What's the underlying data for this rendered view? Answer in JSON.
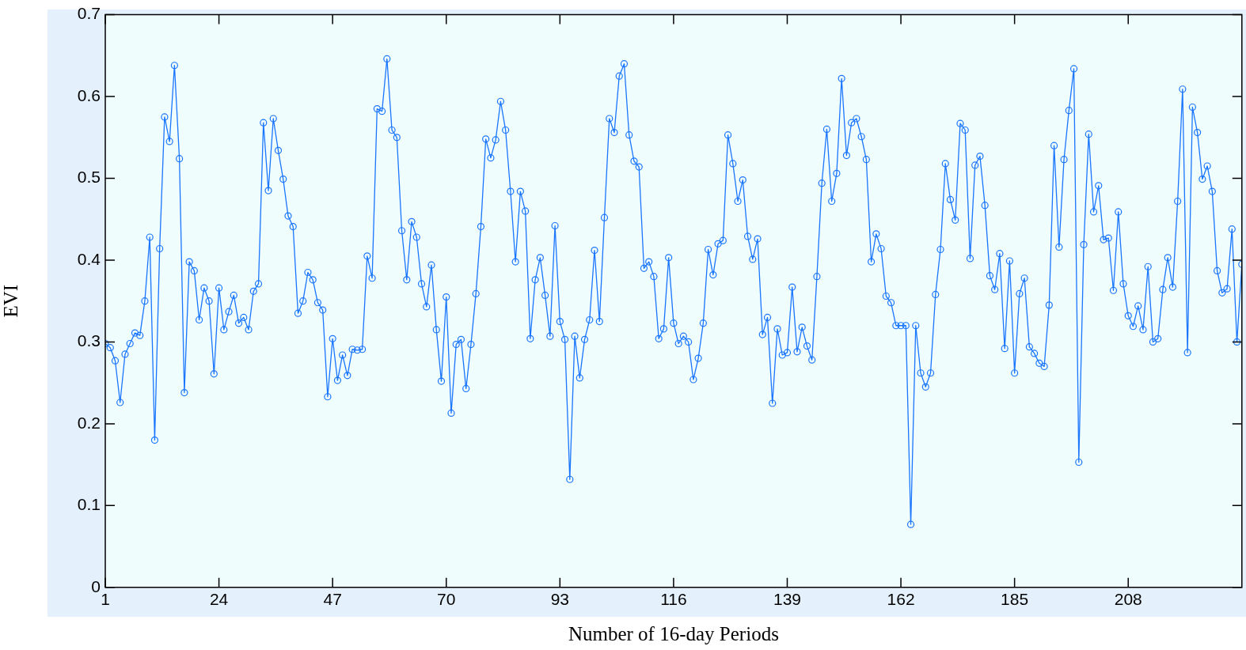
{
  "chart_data": {
    "type": "line",
    "xlabel": "Number of 16-day Periods",
    "ylabel": "EVI",
    "xlim": [
      1,
      231
    ],
    "ylim": [
      0,
      0.7
    ],
    "xticks": [
      1,
      24,
      47,
      70,
      93,
      116,
      139,
      162,
      185,
      208
    ],
    "yticks": [
      0,
      0.1,
      0.2,
      0.3,
      0.4,
      0.5,
      0.6,
      0.7
    ],
    "marker": "circle",
    "line_style": "solid",
    "x": [
      1,
      2,
      3,
      4,
      5,
      6,
      7,
      8,
      9,
      10,
      11,
      12,
      13,
      14,
      15,
      16,
      17,
      18,
      19,
      20,
      21,
      22,
      23,
      24,
      25,
      26,
      27,
      28,
      29,
      30,
      31,
      32,
      33,
      34,
      35,
      36,
      37,
      38,
      39,
      40,
      41,
      42,
      43,
      44,
      45,
      46,
      47,
      48,
      49,
      50,
      51,
      52,
      53,
      54,
      55,
      56,
      57,
      58,
      59,
      60,
      61,
      62,
      63,
      64,
      65,
      66,
      67,
      68,
      69,
      70,
      71,
      72,
      73,
      74,
      75,
      76,
      77,
      78,
      79,
      80,
      81,
      82,
      83,
      84,
      85,
      86,
      87,
      88,
      89,
      90,
      91,
      92,
      93,
      94,
      95,
      96,
      97,
      98,
      99,
      100,
      101,
      102,
      103,
      104,
      105,
      106,
      107,
      108,
      109,
      110,
      111,
      112,
      113,
      114,
      115,
      116,
      117,
      118,
      119,
      120,
      121,
      122,
      123,
      124,
      125,
      126,
      127,
      128,
      129,
      130,
      131,
      132,
      133,
      134,
      135,
      136,
      137,
      138,
      139,
      140,
      141,
      142,
      143,
      144,
      145,
      146,
      147,
      148,
      149,
      150,
      151,
      152,
      153,
      154,
      155,
      156,
      157,
      158,
      159,
      160,
      161,
      162,
      163,
      164,
      165,
      166,
      167,
      168,
      169,
      170,
      171,
      172,
      173,
      174,
      175,
      176,
      177,
      178,
      179,
      180,
      181,
      182,
      183,
      184,
      185,
      186,
      187,
      188,
      189,
      190,
      191,
      192,
      193,
      194,
      195,
      196,
      197,
      198,
      199,
      200,
      201,
      202,
      203,
      204,
      205,
      206,
      207,
      208,
      209,
      210,
      211,
      212,
      213,
      214,
      215,
      216,
      217,
      218,
      219,
      220,
      221,
      222,
      223,
      224,
      225,
      226,
      227,
      228,
      229,
      230,
      231
    ],
    "series": [
      {
        "color": "#1a75ff",
        "values": [
          0.298,
          0.293,
          0.277,
          0.226,
          0.285,
          0.298,
          0.311,
          0.308,
          0.35,
          0.428,
          0.18,
          0.414,
          0.575,
          0.545,
          0.638,
          0.524,
          0.238,
          0.398,
          0.387,
          0.327,
          0.366,
          0.35,
          0.261,
          0.366,
          0.315,
          0.337,
          0.357,
          0.323,
          0.33,
          0.315,
          0.362,
          0.371,
          0.568,
          0.485,
          0.573,
          0.534,
          0.499,
          0.454,
          0.441,
          0.335,
          0.35,
          0.385,
          0.376,
          0.348,
          0.339,
          0.233,
          0.304,
          0.253,
          0.284,
          0.259,
          0.291,
          0.29,
          0.291,
          0.405,
          0.378,
          0.585,
          0.582,
          0.646,
          0.559,
          0.55,
          0.436,
          0.376,
          0.447,
          0.428,
          0.371,
          0.343,
          0.394,
          0.315,
          0.252,
          0.355,
          0.213,
          0.297,
          0.303,
          0.243,
          0.297,
          0.359,
          0.441,
          0.548,
          0.525,
          0.547,
          0.594,
          0.559,
          0.484,
          0.398,
          0.484,
          0.46,
          0.304,
          0.376,
          0.403,
          0.357,
          0.307,
          0.442,
          0.325,
          0.303,
          0.132,
          0.307,
          0.256,
          0.303,
          0.327,
          0.412,
          0.325,
          0.452,
          0.573,
          0.556,
          0.625,
          0.64,
          0.553,
          0.521,
          0.514,
          0.39,
          0.398,
          0.38,
          0.304,
          0.316,
          0.403,
          0.323,
          0.298,
          0.307,
          0.3,
          0.254,
          0.28,
          0.323,
          0.413,
          0.382,
          0.42,
          0.424,
          0.553,
          0.518,
          0.472,
          0.498,
          0.429,
          0.401,
          0.426,
          0.309,
          0.33,
          0.225,
          0.316,
          0.284,
          0.287,
          0.367,
          0.288,
          0.318,
          0.295,
          0.278,
          0.38,
          0.494,
          0.56,
          0.472,
          0.506,
          0.622,
          0.528,
          0.568,
          0.573,
          0.551,
          0.523,
          0.398,
          0.432,
          0.414,
          0.356,
          0.348,
          0.32,
          0.32,
          0.32,
          0.077,
          0.32,
          0.262,
          0.245,
          0.262,
          0.358,
          0.413,
          0.518,
          0.474,
          0.449,
          0.567,
          0.559,
          0.402,
          0.516,
          0.527,
          0.467,
          0.381,
          0.364,
          0.408,
          0.292,
          0.399,
          0.262,
          0.359,
          0.378,
          0.294,
          0.286,
          0.274,
          0.27,
          0.345,
          0.54,
          0.416,
          0.523,
          0.583,
          0.634,
          0.153,
          0.419,
          0.554,
          0.459,
          0.491,
          0.425,
          0.427,
          0.363,
          0.459,
          0.371,
          0.332,
          0.319,
          0.344,
          0.315,
          0.392,
          0.3,
          0.304,
          0.364,
          0.403,
          0.367,
          0.472,
          0.609,
          0.287,
          0.587,
          0.556,
          0.499,
          0.515,
          0.484,
          0.387,
          0.36,
          0.365,
          0.438,
          0.3,
          0.395
        ]
      }
    ]
  }
}
